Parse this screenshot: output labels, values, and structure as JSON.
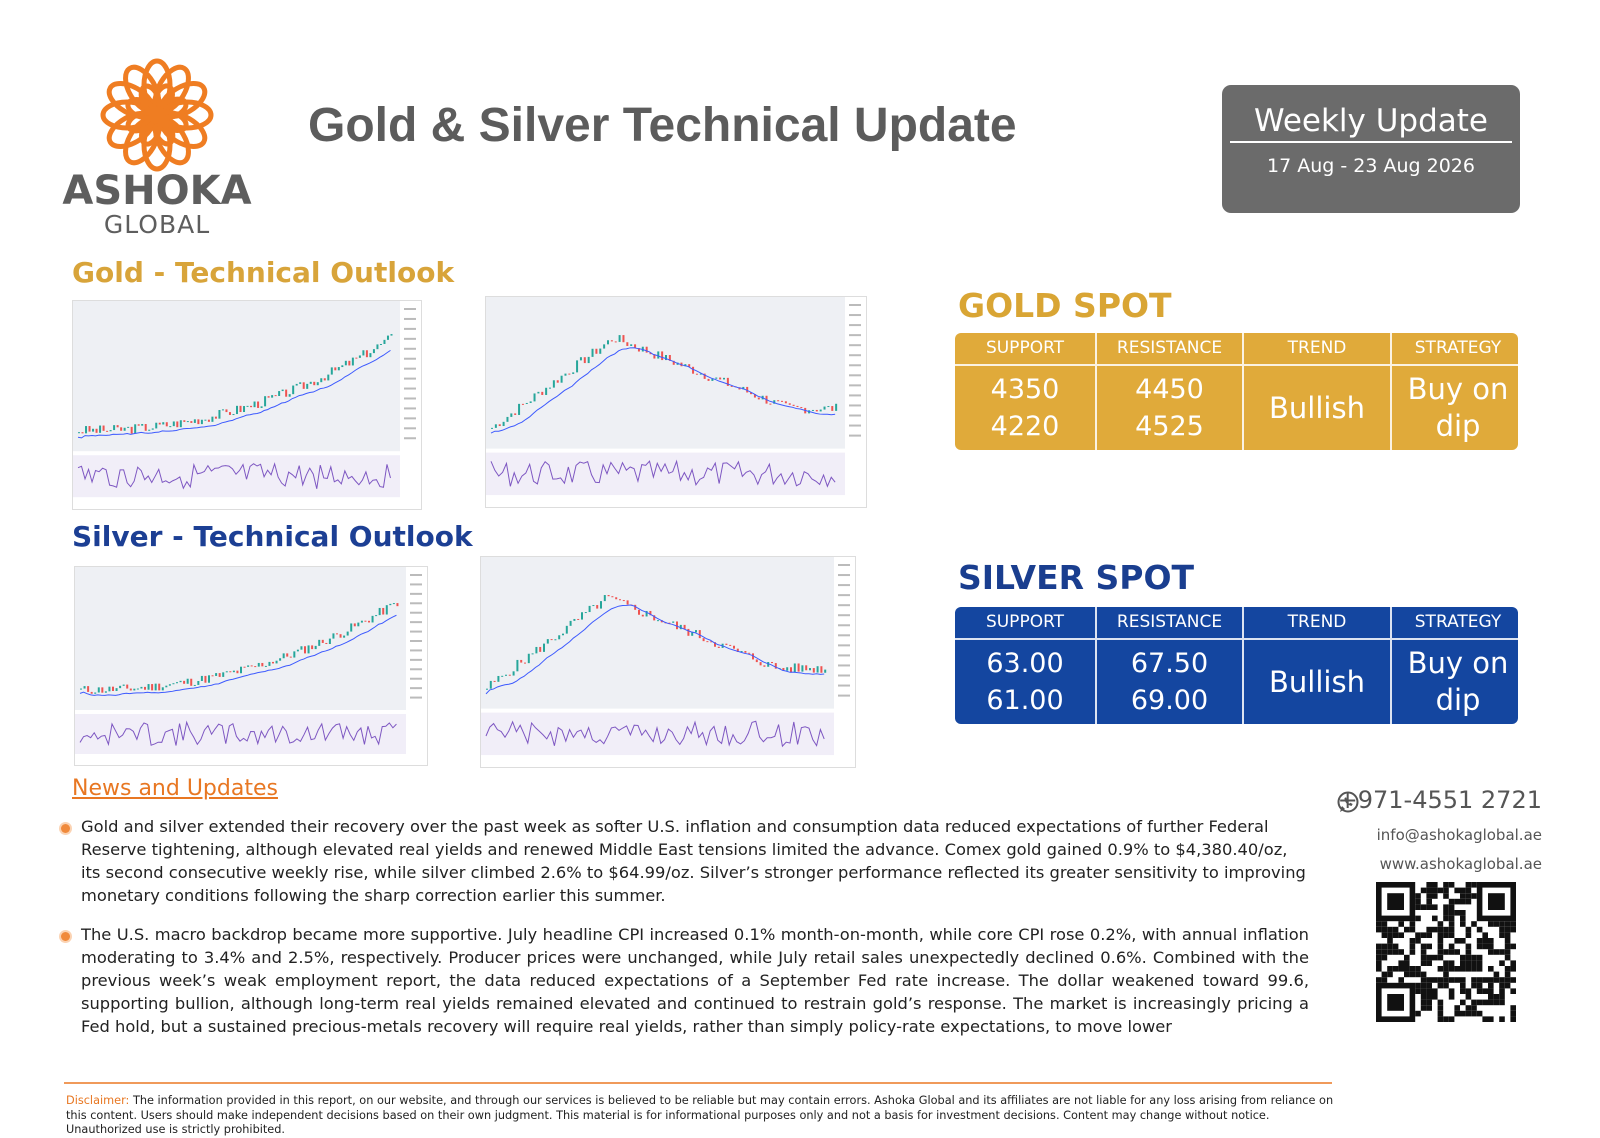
{
  "header": {
    "brand": "ASHOKA",
    "brand_sub": "GLOBAL",
    "title": "Gold & Silver Technical Update",
    "badge_title": "Weekly Update",
    "badge_dates": "17 Aug - 23 Aug 2026"
  },
  "gold": {
    "section_title": "Gold - Technical Outlook",
    "spot_title": "GOLD SPOT",
    "columns": [
      "SUPPORT",
      "RESISTANCE",
      "TREND",
      "STRATEGY"
    ],
    "support": [
      "4350",
      "4220"
    ],
    "resistance": [
      "4450",
      "4525"
    ],
    "trend": "Bullish",
    "strategy": "Buy on dip"
  },
  "silver": {
    "section_title": "Silver - Technical Outlook",
    "spot_title": "SILVER SPOT",
    "columns": [
      "SUPPORT",
      "RESISTANCE",
      "TREND",
      "STRATEGY"
    ],
    "support": [
      "63.00",
      "61.00"
    ],
    "resistance": [
      "67.50",
      "69.00"
    ],
    "trend": "Bullish",
    "strategy": "Buy on dip"
  },
  "news": {
    "title": "News and Updates",
    "items": [
      "Gold and silver extended their recovery over the past week as softer U.S. inflation and consumption data reduced expectations of further Federal Reserve tightening, although elevated real yields and renewed Middle East tensions limited the advance. Comex gold gained 0.9% to $4,380.40/oz, its second consecutive weekly rise, while silver climbed 2.6% to $64.99/oz. Silver’s stronger performance reflected its greater sensitivity to improving monetary conditions following the sharp correction earlier this summer.",
      "The U.S. macro backdrop became more supportive. July headline CPI increased 0.1% month-on-month, while core CPI rose 0.2%, with annual inflation moderating to 3.4% and 2.5%, respectively. Producer prices were unchanged, while July retail sales unexpectedly declined 0.6%. Combined with the previous week’s weak employment report, the data reduced expectations of a September Fed rate increase. The dollar weakened toward 99.6, supporting bullion, although long-term real yields remained elevated and continued to restrain gold’s response. The market is increasingly pricing a Fed hold, but a sustained precious-metals recovery will require real yields, rather than simply policy-rate expectations, to move lower"
    ]
  },
  "contact": {
    "phone": "+971-4551 2721",
    "email": "info@ashokaglobal.ae",
    "website": "www.ashokaglobal.ae"
  },
  "disclaimer": {
    "label": "Disclaimer:",
    "text": "The information provided in this report, on our website, and through our services is believed to be reliable but may contain errors. Ashoka Global and its affiliates are not liable for any loss arising from reliance on this content. Users should make independent decisions based on their own judgment. This material is for informational purposes only and not a basis for investment decisions. Content may change without notice. Unauthorized use is strictly prohibited."
  }
}
